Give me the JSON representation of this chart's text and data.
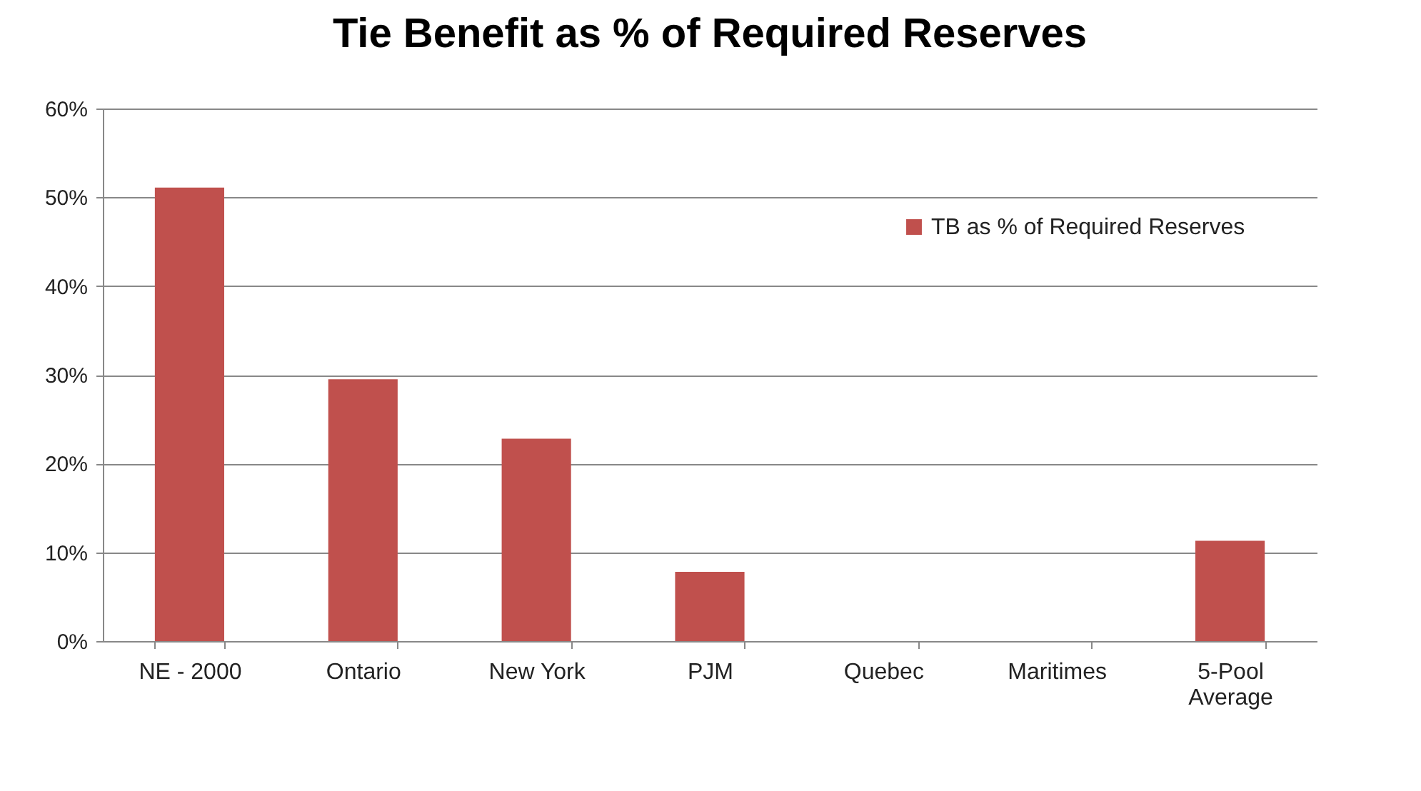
{
  "chart_data": {
    "type": "bar",
    "title": "Tie Benefit as % of Required Reserves",
    "categories": [
      "NE - 2000",
      "Ontario",
      "New York",
      "PJM",
      "Quebec",
      "Maritimes",
      "5-Pool Average"
    ],
    "series": [
      {
        "name": "TB as % of Required Reserves",
        "color": "#c0504d",
        "values": [
          51.1,
          29.5,
          22.8,
          7.8,
          null,
          null,
          11.3
        ]
      }
    ],
    "ylim": [
      0,
      60
    ],
    "yticks": [
      {
        "value": 0,
        "label": "0%"
      },
      {
        "value": 10,
        "label": "10%"
      },
      {
        "value": 20,
        "label": "20%"
      },
      {
        "value": 30,
        "label": "30%"
      },
      {
        "value": 40,
        "label": "40%"
      },
      {
        "value": 50,
        "label": "50%"
      },
      {
        "value": 60,
        "label": "60%"
      }
    ],
    "grid": "y",
    "legend": "top right"
  }
}
